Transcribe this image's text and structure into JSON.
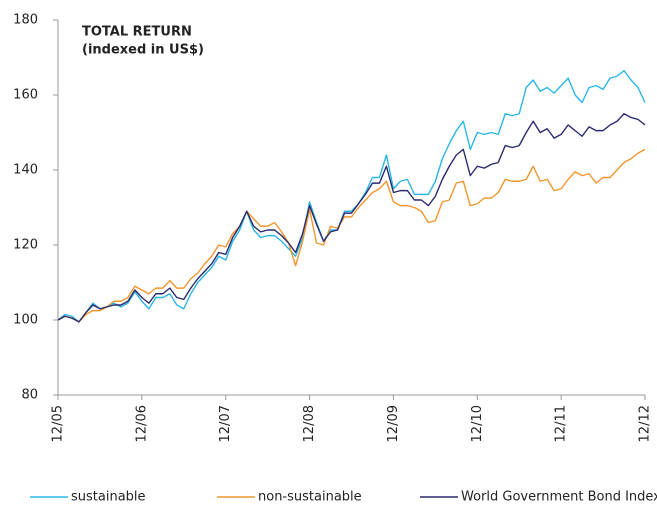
{
  "chart_data": {
    "type": "line",
    "title": "TOTAL RETURN",
    "subtitle": "(indexed in US$)",
    "categories": [
      "12/05",
      null,
      null,
      null,
      null,
      null,
      null,
      null,
      null,
      null,
      null,
      null,
      "12/06",
      null,
      null,
      null,
      null,
      null,
      null,
      null,
      null,
      null,
      null,
      null,
      "12/07",
      null,
      null,
      null,
      null,
      null,
      null,
      null,
      null,
      null,
      null,
      null,
      "12/08",
      null,
      null,
      null,
      null,
      null,
      null,
      null,
      null,
      null,
      null,
      null,
      "12/09",
      null,
      null,
      null,
      null,
      null,
      null,
      null,
      null,
      null,
      null,
      null,
      "12/10",
      null,
      null,
      null,
      null,
      null,
      null,
      null,
      null,
      null,
      null,
      null,
      "12/11",
      null,
      null,
      null,
      null,
      null,
      null,
      null,
      null,
      null,
      null,
      null,
      "12/12"
    ],
    "ylim": [
      80,
      180
    ],
    "yticks": [
      80,
      100,
      120,
      140,
      160,
      180
    ],
    "legend": "bottom",
    "series": [
      {
        "name": "sustainable",
        "color": "#2bb5e6",
        "values": [
          100,
          101.5,
          101,
          99.5,
          102,
          104.5,
          103,
          103.5,
          104.5,
          103.5,
          104.5,
          107.5,
          105,
          103,
          106,
          106,
          107,
          104,
          103,
          107,
          110,
          112,
          114,
          117,
          116,
          121,
          124,
          129,
          124,
          122,
          122.5,
          122.5,
          121,
          119,
          117,
          122,
          131.5,
          126,
          121,
          124,
          124,
          129,
          129,
          131,
          134,
          138,
          138,
          144,
          135,
          137,
          137.5,
          133.5,
          133.5,
          133.5,
          137,
          143,
          147,
          150.5,
          153,
          145.5,
          150,
          149.5,
          150,
          149.5,
          155,
          154.5,
          155,
          162,
          164,
          161,
          162,
          160.5,
          162.5,
          164.5,
          160,
          158,
          162,
          162.5,
          161.5,
          164.5,
          165,
          166.5,
          164,
          162,
          158
        ]
      },
      {
        "name": "non-sustainable",
        "color": "#f0962e",
        "values": [
          100,
          101,
          100.5,
          99.5,
          101.5,
          102.5,
          102.5,
          103.5,
          105,
          105,
          106,
          109,
          108,
          107,
          108.5,
          108.5,
          110.5,
          108.5,
          108.5,
          111,
          112.5,
          115,
          117,
          120,
          119.5,
          123,
          125,
          129,
          127,
          125,
          125,
          126,
          123.5,
          120.5,
          114.5,
          121,
          129.5,
          120.5,
          120,
          125,
          124.5,
          127.5,
          127.5,
          130,
          132,
          134,
          135,
          137,
          131.5,
          130.5,
          130.5,
          130,
          129,
          126,
          126.5,
          131.5,
          132,
          136.5,
          137,
          130.5,
          131,
          132.5,
          132.5,
          134,
          137.5,
          137,
          137,
          137.5,
          141,
          137,
          137.5,
          134.5,
          135,
          137.5,
          139.5,
          138.5,
          139,
          136.5,
          138,
          138,
          140,
          142,
          143,
          144.5,
          145.5
        ]
      },
      {
        "name": "World Government Bond Index",
        "color": "#2a2a6e",
        "values": [
          100,
          101,
          100.5,
          99.5,
          102,
          104,
          103,
          103.5,
          104,
          104,
          105,
          108,
          106,
          104.5,
          107,
          107,
          108.5,
          106,
          105.5,
          108.5,
          111,
          113,
          115,
          118,
          117.5,
          122,
          125,
          129,
          125,
          123.5,
          124,
          124,
          122.5,
          120.5,
          118,
          123,
          130.5,
          125.5,
          121,
          123.5,
          124,
          128.5,
          128.5,
          131,
          133.5,
          136.5,
          136.5,
          141,
          134,
          134.5,
          134.5,
          132,
          132,
          130.5,
          133,
          137.5,
          141,
          144,
          145.5,
          138.5,
          141,
          140.5,
          141.5,
          142,
          146.5,
          146,
          146.5,
          150,
          153,
          150,
          151,
          148.5,
          149.5,
          152,
          150.5,
          149,
          151.5,
          150.5,
          150.5,
          152,
          153,
          155,
          154,
          153.5,
          152
        ]
      }
    ]
  }
}
